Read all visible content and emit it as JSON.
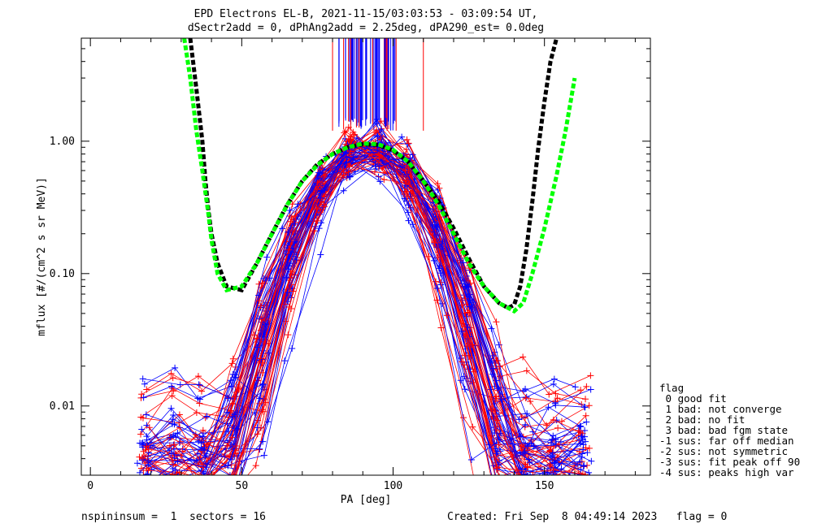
{
  "title": {
    "line1": "EPD Electrons EL-B, 2021-11-15/03:03:53 - 03:09:54 UT,",
    "line2": "dSectr2add = 0, dPhAng2add = 2.25deg, dPA290_est=   0.0deg"
  },
  "footer": {
    "left": "nspininsum =  1  sectors = 16",
    "right": "Created: Fri Sep  8 04:49:14 2023   flag = 0"
  },
  "legend": {
    "title": "flag",
    "items": [
      " 0 good fit",
      " 1 bad: not converge",
      " 2 bad: no fit",
      " 3 bad: bad fgm state",
      "-1 sus: far off median",
      "-2 sus: not symmetric",
      "-3 sus: fit peak off 90",
      "-4 sus: peaks high var"
    ]
  },
  "colors": {
    "blue": "#0000ff",
    "red": "#ff0000",
    "black_fit": "#000000",
    "green_fit": "#00ff00"
  },
  "chart_data": {
    "type": "line",
    "xlabel": "PA [deg]",
    "ylabel": "mflux [#/(cm^2 s sr MeV)]",
    "xlim": [
      -3,
      185
    ],
    "ylim": [
      0.003,
      6.0
    ],
    "yscale": "log",
    "x_ticks": [
      0,
      50,
      100,
      150
    ],
    "x_tick_labels": [
      "0",
      "50",
      "100",
      "150"
    ],
    "y_ticks": [
      0.01,
      0.1,
      1.0
    ],
    "y_tick_labels": [
      "0.01",
      "0.10",
      "1.00"
    ],
    "series": [
      {
        "color": "black",
        "style": "dashed",
        "points": [
          [
            33,
            6.0
          ],
          [
            35,
            2.5
          ],
          [
            37,
            1.0
          ],
          [
            38,
            0.5
          ],
          [
            39,
            0.3
          ],
          [
            40,
            0.2
          ],
          [
            42,
            0.12
          ],
          [
            45,
            0.08
          ],
          [
            50,
            0.075
          ],
          [
            55,
            0.12
          ],
          [
            60,
            0.2
          ],
          [
            65,
            0.33
          ],
          [
            70,
            0.5
          ],
          [
            75,
            0.67
          ],
          [
            80,
            0.8
          ],
          [
            85,
            0.9
          ],
          [
            90,
            0.95
          ],
          [
            95,
            0.94
          ],
          [
            100,
            0.85
          ],
          [
            105,
            0.7
          ],
          [
            110,
            0.5
          ],
          [
            115,
            0.35
          ],
          [
            120,
            0.22
          ],
          [
            125,
            0.13
          ],
          [
            130,
            0.08
          ],
          [
            135,
            0.06
          ],
          [
            138,
            0.055
          ],
          [
            140,
            0.058
          ],
          [
            142,
            0.08
          ],
          [
            144,
            0.15
          ],
          [
            146,
            0.35
          ],
          [
            148,
            0.9
          ],
          [
            150,
            2.0
          ],
          [
            152,
            4.0
          ],
          [
            154,
            6.0
          ]
        ]
      },
      {
        "color": "green",
        "style": "dashed",
        "points": [
          [
            31,
            6.0
          ],
          [
            33,
            3.0
          ],
          [
            35,
            1.2
          ],
          [
            37,
            0.6
          ],
          [
            39,
            0.28
          ],
          [
            40,
            0.18
          ],
          [
            42,
            0.1
          ],
          [
            45,
            0.075
          ],
          [
            50,
            0.08
          ],
          [
            55,
            0.12
          ],
          [
            60,
            0.2
          ],
          [
            65,
            0.33
          ],
          [
            70,
            0.5
          ],
          [
            75,
            0.66
          ],
          [
            80,
            0.8
          ],
          [
            85,
            0.9
          ],
          [
            90,
            0.96
          ],
          [
            95,
            0.95
          ],
          [
            100,
            0.86
          ],
          [
            105,
            0.7
          ],
          [
            110,
            0.5
          ],
          [
            115,
            0.33
          ],
          [
            120,
            0.2
          ],
          [
            125,
            0.12
          ],
          [
            130,
            0.08
          ],
          [
            135,
            0.06
          ],
          [
            140,
            0.052
          ],
          [
            143,
            0.06
          ],
          [
            146,
            0.1
          ],
          [
            150,
            0.22
          ],
          [
            154,
            0.55
          ],
          [
            157,
            1.2
          ],
          [
            160,
            3.0
          ]
        ]
      }
    ],
    "spectrum_bundle": {
      "blue_count": 40,
      "red_count": 40,
      "peak_pa": 92,
      "peak_flux": 0.9,
      "low_pa_min": 18,
      "high_pa_max": 163
    },
    "vertical_spikes": {
      "pa_min": 82,
      "pa_max": 101,
      "red_outliers": [
        80,
        86,
        98,
        101,
        110
      ]
    }
  }
}
